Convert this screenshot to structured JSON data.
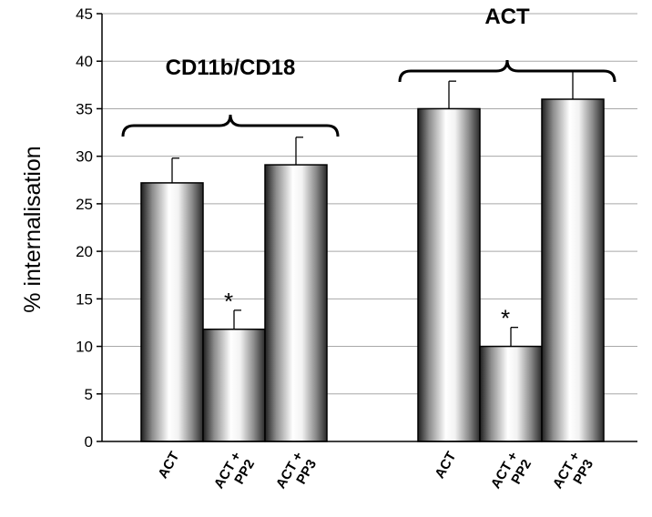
{
  "chart_data": {
    "type": "bar",
    "ylabel": "% internalisation",
    "ylim": [
      0,
      45
    ],
    "yticks": [
      0,
      5,
      10,
      15,
      20,
      25,
      30,
      35,
      40,
      45
    ],
    "grid": true,
    "groups": [
      {
        "label": "CD11b/CD18",
        "bars": [
          {
            "label": [
              "ACT"
            ],
            "value": 27.2,
            "error": 2.6,
            "significant": false
          },
          {
            "label": [
              "ACT +",
              "PP2"
            ],
            "value": 11.8,
            "error": 2.0,
            "significant": true
          },
          {
            "label": [
              "ACT +",
              "PP3"
            ],
            "value": 29.1,
            "error": 2.9,
            "significant": false
          }
        ]
      },
      {
        "label": "ACT",
        "bars": [
          {
            "label": [
              "ACT"
            ],
            "value": 35.0,
            "error": 2.9,
            "significant": false
          },
          {
            "label": [
              "ACT +",
              "PP2"
            ],
            "value": 10.0,
            "error": 2.0,
            "significant": true
          },
          {
            "label": [
              "ACT +",
              "PP3"
            ],
            "value": 36.0,
            "error": 3.0,
            "significant": false
          }
        ]
      }
    ],
    "significance_marker": "*"
  }
}
